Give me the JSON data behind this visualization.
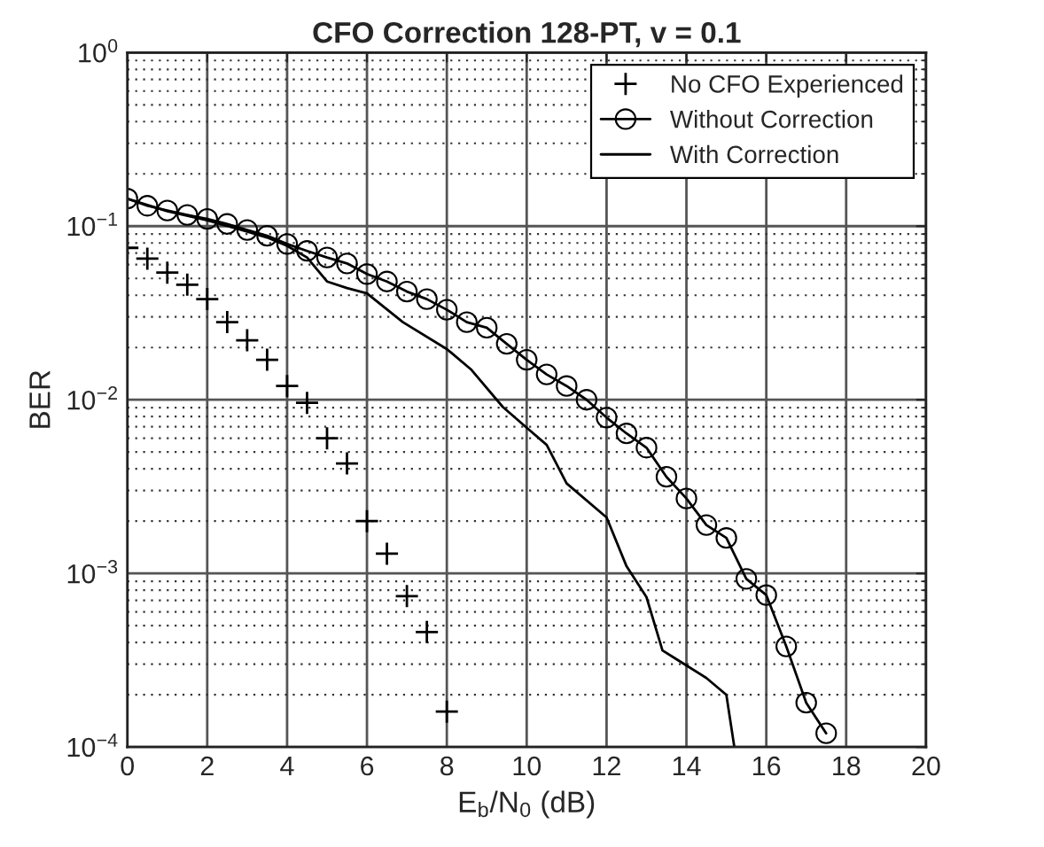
{
  "chart_data": {
    "type": "line",
    "title": "CFO Correction 128-PT, v = 0.1",
    "xlabel": "E$_{b}$/N$_{0}$ (dB)",
    "ylabel": "BER",
    "log": "y",
    "grid": true,
    "legend": "top right",
    "xlim": [
      0,
      20
    ],
    "xticks": [
      0,
      2,
      4,
      6,
      8,
      10,
      12,
      14,
      16,
      18,
      20
    ],
    "ylim": [
      0.0001,
      1
    ],
    "yticks": [
      {
        "value": 0.0001,
        "label": "10$^{−4}$"
      },
      {
        "value": 0.001,
        "label": "10$^{−3}$"
      },
      {
        "value": 0.01,
        "label": "10$^{−2}$"
      },
      {
        "value": 0.1,
        "label": "10$^{−1}$"
      },
      {
        "value": 1,
        "label": "10$^{0}$"
      }
    ],
    "series": [
      {
        "name": "No CFO Experienced",
        "type": "scatter",
        "marker": "cross",
        "color": "#000000",
        "x": [
          0,
          0.5,
          1,
          1.5,
          2,
          2.5,
          3,
          3.5,
          4,
          4.5,
          5,
          5.5,
          6,
          6.5,
          7,
          7.5,
          8
        ],
        "values": [
          0.075,
          0.065,
          0.054,
          0.046,
          0.038,
          0.028,
          0.022,
          0.017,
          0.012,
          0.0096,
          0.006,
          0.0043,
          0.002,
          0.0013,
          0.00074,
          0.00046,
          0.00016
        ]
      },
      {
        "name": "Without Correction",
        "marker": "circle",
        "line_style": "solid",
        "color": "#000000",
        "x": [
          0,
          0.5,
          1,
          1.5,
          2,
          2.5,
          3,
          3.5,
          4,
          4.5,
          5,
          5.5,
          6,
          6.5,
          7,
          7.5,
          8,
          8.5,
          9,
          9.5,
          10,
          10.5,
          11,
          11.5,
          12,
          12.5,
          13,
          13.5,
          14,
          14.5,
          15,
          15.5,
          16,
          16.5,
          17,
          17.5
        ],
        "values": [
          0.144,
          0.131,
          0.123,
          0.116,
          0.11,
          0.103,
          0.095,
          0.088,
          0.079,
          0.072,
          0.066,
          0.061,
          0.053,
          0.048,
          0.042,
          0.038,
          0.033,
          0.028,
          0.026,
          0.021,
          0.017,
          0.014,
          0.012,
          0.01,
          0.0079,
          0.0064,
          0.0053,
          0.0036,
          0.0027,
          0.0019,
          0.0016,
          0.00093,
          0.00075,
          0.00038,
          0.00018,
          0.00012
        ]
      },
      {
        "name": "With Correction",
        "marker": "none",
        "line_style": "solid",
        "color": "#000000",
        "x": [
          0,
          1,
          2,
          3,
          3.5,
          4,
          4.5,
          5,
          5.5,
          6,
          6.9,
          8,
          8.6,
          9.4,
          10,
          10.5,
          11,
          12,
          12.5,
          13,
          13.4,
          14.5,
          15,
          15.2
        ],
        "values": [
          0.144,
          0.122,
          0.108,
          0.093,
          0.086,
          0.077,
          0.066,
          0.048,
          0.044,
          0.041,
          0.028,
          0.0196,
          0.015,
          0.0091,
          0.0069,
          0.0055,
          0.0033,
          0.0021,
          0.0011,
          0.00073,
          0.00036,
          0.00025,
          0.0002,
          0.0001
        ]
      }
    ]
  }
}
